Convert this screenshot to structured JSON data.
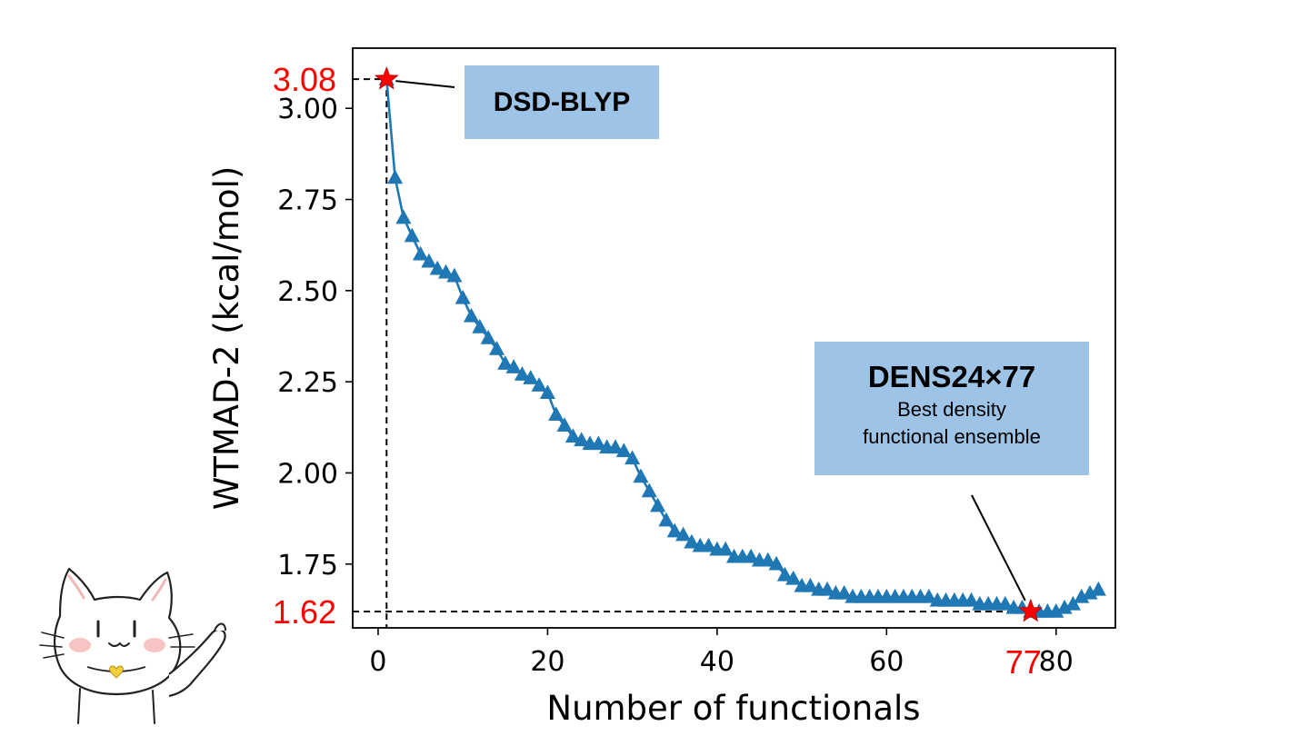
{
  "chart_data": {
    "type": "line",
    "title": "",
    "xlabel": "Number of functionals",
    "ylabel": "WTMAD-2 (kcal/mol)",
    "xlim": [
      -3,
      87
    ],
    "ylim": [
      1.575,
      3.165
    ],
    "x_ticks": [
      0,
      20,
      40,
      60,
      80
    ],
    "y_ticks": [
      1.75,
      2.0,
      2.25,
      2.5,
      2.75,
      3.0
    ],
    "x_tick_labels": [
      "0",
      "20",
      "40",
      "60",
      "80"
    ],
    "y_tick_labels": [
      "1.75",
      "2.00",
      "2.25",
      "2.50",
      "2.75",
      "3.00"
    ],
    "grid": false,
    "marker": "triangle",
    "series_color": "#1f77b4",
    "highlight_color": "#ff0000",
    "series": [
      {
        "x": [
          1,
          2,
          3,
          4,
          5,
          6,
          7,
          8,
          9,
          10,
          11,
          12,
          13,
          14,
          15,
          16,
          17,
          18,
          19,
          20,
          21,
          22,
          23,
          24,
          25,
          26,
          27,
          28,
          29,
          30,
          31,
          32,
          33,
          34,
          35,
          36,
          37,
          38,
          39,
          40,
          41,
          42,
          43,
          44,
          45,
          46,
          47,
          48,
          49,
          50,
          51,
          52,
          53,
          54,
          55,
          56,
          57,
          58,
          59,
          60,
          61,
          62,
          63,
          64,
          65,
          66,
          67,
          68,
          69,
          70,
          71,
          72,
          73,
          74,
          75,
          76,
          77,
          78,
          79,
          80,
          81,
          82,
          83,
          84,
          85
        ],
        "values": [
          3.08,
          2.81,
          2.7,
          2.65,
          2.6,
          2.58,
          2.56,
          2.55,
          2.54,
          2.48,
          2.43,
          2.4,
          2.37,
          2.34,
          2.3,
          2.29,
          2.27,
          2.26,
          2.24,
          2.22,
          2.16,
          2.13,
          2.1,
          2.09,
          2.08,
          2.08,
          2.07,
          2.07,
          2.06,
          2.04,
          1.99,
          1.95,
          1.91,
          1.87,
          1.84,
          1.83,
          1.81,
          1.8,
          1.8,
          1.79,
          1.79,
          1.77,
          1.77,
          1.77,
          1.76,
          1.76,
          1.75,
          1.72,
          1.71,
          1.69,
          1.69,
          1.68,
          1.68,
          1.67,
          1.67,
          1.66,
          1.66,
          1.66,
          1.66,
          1.66,
          1.66,
          1.66,
          1.66,
          1.66,
          1.66,
          1.65,
          1.65,
          1.65,
          1.65,
          1.65,
          1.64,
          1.64,
          1.64,
          1.64,
          1.63,
          1.63,
          1.62,
          1.62,
          1.62,
          1.62,
          1.63,
          1.64,
          1.66,
          1.67,
          1.68
        ]
      }
    ],
    "highlights": [
      {
        "x": 1,
        "y": 3.08,
        "y_label": "3.08",
        "x_label": ""
      },
      {
        "x": 77,
        "y": 1.62,
        "y_label": "1.62",
        "x_label": "77"
      }
    ],
    "annotations": {
      "dsd": {
        "title": "DSD-BLYP"
      },
      "dens": {
        "title": "DENS24×77",
        "subtitle_line1": "Best density",
        "subtitle_line2": "functional ensemble"
      }
    }
  }
}
